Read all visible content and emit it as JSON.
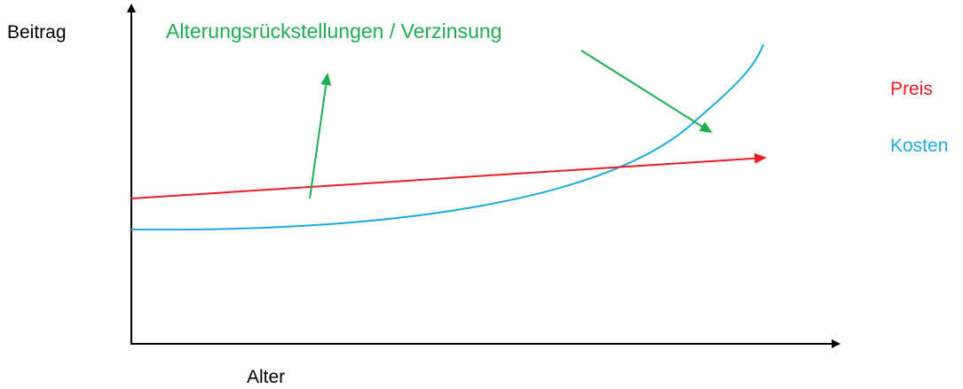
{
  "diagram": {
    "y_axis_label": "Beitrag",
    "x_axis_label": "Alter",
    "annotation": "Alterungsrückstellungen / Verzinsung",
    "series": [
      {
        "name": "Preis",
        "color": "#ee1c24",
        "shape": "linear-rising"
      },
      {
        "name": "Kosten",
        "color": "#21aae1",
        "shape": "exponential-rising"
      }
    ],
    "annotation_color": "#1fae4f",
    "axis_color": "#000000"
  }
}
